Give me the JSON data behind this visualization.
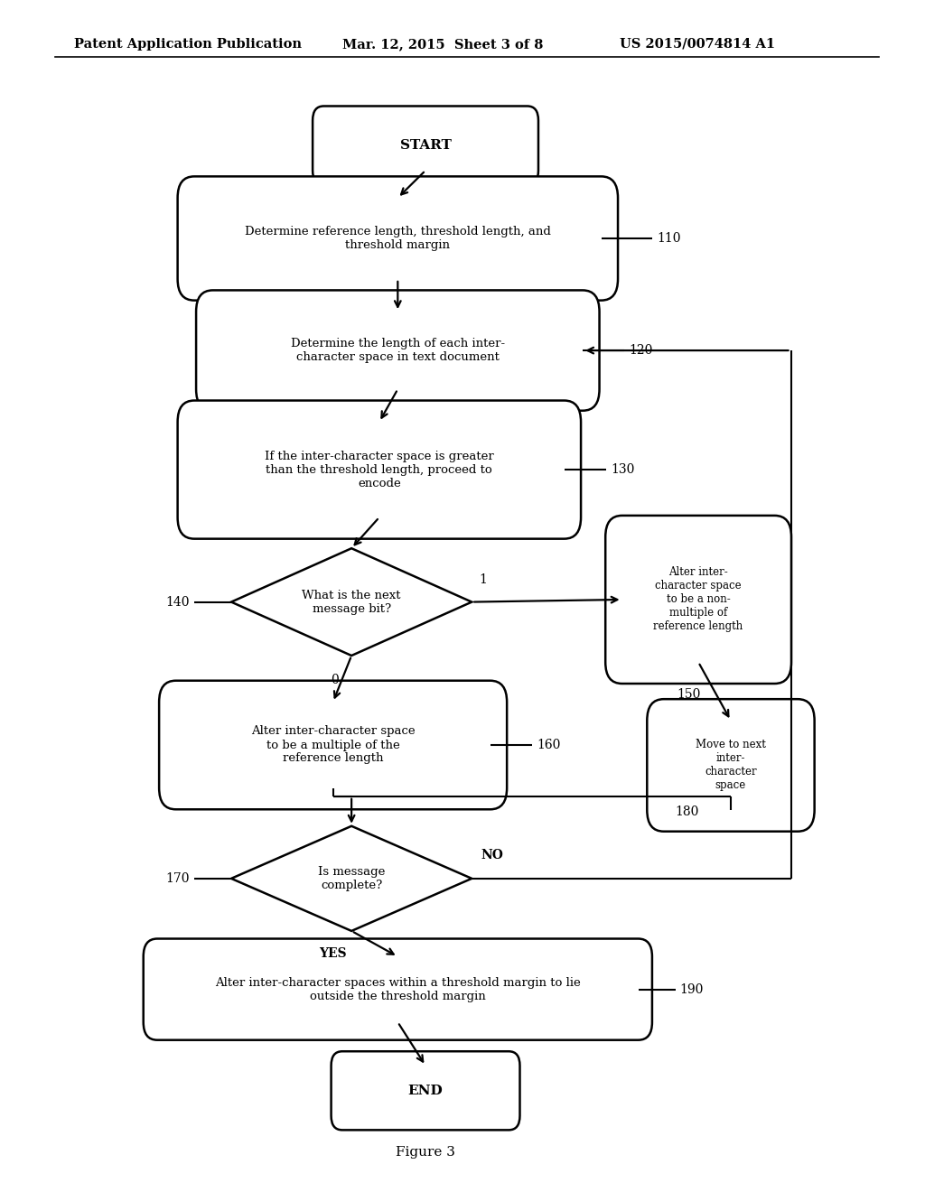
{
  "header_left": "Patent Application Publication",
  "header_mid": "Mar. 12, 2015  Sheet 3 of 8",
  "header_right": "US 2015/0074814 A1",
  "figure_label": "Figure 3",
  "bg_color": "#ffffff",
  "start_text": "START",
  "end_text": "END",
  "b110_text": "Determine reference length, threshold length, and\nthreshold margin",
  "b110_label": "110",
  "b120_text": "Determine the length of each inter-\ncharacter space in text document",
  "b120_label": "120",
  "b130_text": "If the inter-character space is greater\nthan the threshold length, proceed to\nencode",
  "b130_label": "130",
  "d140_text": "What is the next\nmessage bit?",
  "d140_label": "140",
  "b150_text": "Alter inter-\ncharacter space\nto be a non-\nmultiple of\nreference length",
  "b150_label": "150",
  "b160_text": "Alter inter-character space\nto be a multiple of the\nreference length",
  "b160_label": "160",
  "b180_text": "Move to next\ninter-\ncharacter\nspace",
  "b180_label": "180",
  "d170_text": "Is message\ncomplete?",
  "d170_label": "170",
  "b190_text": "Alter inter-character spaces within a threshold margin to lie\noutside the threshold margin",
  "b190_label": "190",
  "label1": "1",
  "label0": "0",
  "label_yes": "YES",
  "label_no": "NO"
}
